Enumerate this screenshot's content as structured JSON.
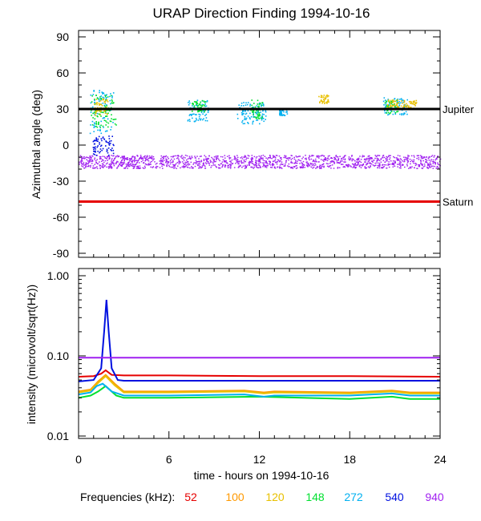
{
  "chart_data": [
    {
      "type": "scatter",
      "title": "URAP Direction Finding  1994-10-16",
      "ylabel": "Azimuthal angle (deg)",
      "xlim": [
        0,
        24
      ],
      "ylim": [
        -90,
        90
      ],
      "yticks": [
        "90",
        "60",
        "30",
        "0",
        "-30",
        "-60",
        "-90"
      ],
      "ytick_values": [
        90,
        60,
        30,
        0,
        -30,
        -60,
        -90
      ],
      "reference_lines": [
        {
          "name": "Jupiter",
          "y": 30,
          "color": "#000000"
        },
        {
          "name": "Saturn",
          "y": -47,
          "color": "#e60000"
        }
      ],
      "series": [
        {
          "name": "940",
          "color": "#a020f0",
          "band": [
            -19,
            -8
          ],
          "x_range": [
            0,
            24
          ]
        },
        {
          "name": "540",
          "color": "#0010e0",
          "clusters": [
            {
              "x": [
                0.9,
                2.3
              ],
              "y": [
                -8,
                8
              ]
            }
          ]
        },
        {
          "name": "272",
          "color": "#00b0f0",
          "clusters": [
            {
              "x": [
                0.7,
                2.3
              ],
              "y": [
                10,
                46
              ]
            },
            {
              "x": [
                7.2,
                8.6
              ],
              "y": [
                20,
                38
              ]
            },
            {
              "x": [
                10.5,
                12.4
              ],
              "y": [
                18,
                36
              ]
            },
            {
              "x": [
                13.3,
                13.9
              ],
              "y": [
                25,
                30
              ]
            },
            {
              "x": [
                20.2,
                21.8
              ],
              "y": [
                25,
                40
              ]
            }
          ]
        },
        {
          "name": "148",
          "color": "#00e030",
          "clusters": [
            {
              "x": [
                0.8,
                2.5
              ],
              "y": [
                15,
                42
              ]
            },
            {
              "x": [
                7.5,
                8.4
              ],
              "y": [
                28,
                38
              ]
            },
            {
              "x": [
                11.4,
                12.2
              ],
              "y": [
                22,
                38
              ]
            },
            {
              "x": [
                20.3,
                21.2
              ],
              "y": [
                26,
                38
              ]
            }
          ]
        },
        {
          "name": "120",
          "color": "#e8c000",
          "clusters": [
            {
              "x": [
                1.0,
                1.9
              ],
              "y": [
                25,
                40
              ]
            },
            {
              "x": [
                15.9,
                16.6
              ],
              "y": [
                35,
                42
              ]
            },
            {
              "x": [
                20.4,
                22.4
              ],
              "y": [
                30,
                38
              ]
            }
          ]
        }
      ]
    },
    {
      "type": "line",
      "xlabel": "time - hours on 1994-10-16",
      "ylabel": "intensity (microvolt/sqrt(Hz))",
      "yscale": "log",
      "xlim": [
        0,
        24
      ],
      "ylim": [
        0.01,
        1.0
      ],
      "xticks": [
        "0",
        "6",
        "12",
        "18",
        "24"
      ],
      "xtick_values": [
        0,
        6,
        12,
        18,
        24
      ],
      "yticks": [
        "1.00",
        "0.10",
        "0.01"
      ],
      "ytick_values": [
        1.0,
        0.1,
        0.01
      ],
      "legend_title": "Frequencies (kHz):",
      "legend_position": "bottom",
      "series": [
        {
          "name": "52",
          "color": "#e60000",
          "x": [
            0,
            1,
            1.5,
            1.8,
            2.2,
            3,
            6,
            12,
            18,
            24
          ],
          "y": [
            0.055,
            0.056,
            0.06,
            0.066,
            0.058,
            0.057,
            0.057,
            0.056,
            0.056,
            0.055
          ]
        },
        {
          "name": "100",
          "color": "#ff9900",
          "x": [
            0,
            0.8,
            1.3,
            1.8,
            2.4,
            3,
            6,
            11,
            12.3,
            13,
            18,
            20.8,
            22,
            24
          ],
          "y": [
            0.036,
            0.038,
            0.048,
            0.058,
            0.045,
            0.036,
            0.036,
            0.037,
            0.035,
            0.036,
            0.035,
            0.037,
            0.035,
            0.035
          ]
        },
        {
          "name": "120",
          "color": "#e8c000",
          "x": [
            0,
            0.8,
            1.3,
            1.8,
            2.4,
            3,
            6,
            11,
            12.3,
            13,
            18,
            20.8,
            22,
            24
          ],
          "y": [
            0.035,
            0.037,
            0.046,
            0.056,
            0.043,
            0.035,
            0.035,
            0.036,
            0.034,
            0.035,
            0.034,
            0.036,
            0.034,
            0.034
          ]
        },
        {
          "name": "148",
          "color": "#00e030",
          "x": [
            0,
            0.8,
            1.3,
            1.8,
            2.5,
            3,
            6,
            12,
            18,
            20.8,
            22,
            24
          ],
          "y": [
            0.03,
            0.032,
            0.036,
            0.042,
            0.032,
            0.03,
            0.03,
            0.031,
            0.029,
            0.031,
            0.029,
            0.029
          ]
        },
        {
          "name": "272",
          "color": "#00b0f0",
          "x": [
            0,
            0.8,
            1.2,
            1.6,
            2.2,
            3,
            6,
            11,
            12.3,
            13,
            18,
            20.8,
            22,
            24
          ],
          "y": [
            0.033,
            0.035,
            0.042,
            0.045,
            0.036,
            0.032,
            0.032,
            0.033,
            0.031,
            0.032,
            0.032,
            0.034,
            0.032,
            0.032
          ]
        },
        {
          "name": "540",
          "color": "#0010e0",
          "x": [
            0,
            1,
            1.5,
            1.7,
            1.85,
            2.0,
            2.2,
            2.6,
            3,
            6,
            12,
            18,
            24
          ],
          "y": [
            0.048,
            0.05,
            0.07,
            0.2,
            0.5,
            0.2,
            0.07,
            0.05,
            0.049,
            0.049,
            0.049,
            0.049,
            0.049
          ]
        },
        {
          "name": "940",
          "color": "#a020f0",
          "x": [
            0,
            24
          ],
          "y": [
            0.095,
            0.095
          ]
        }
      ]
    }
  ]
}
